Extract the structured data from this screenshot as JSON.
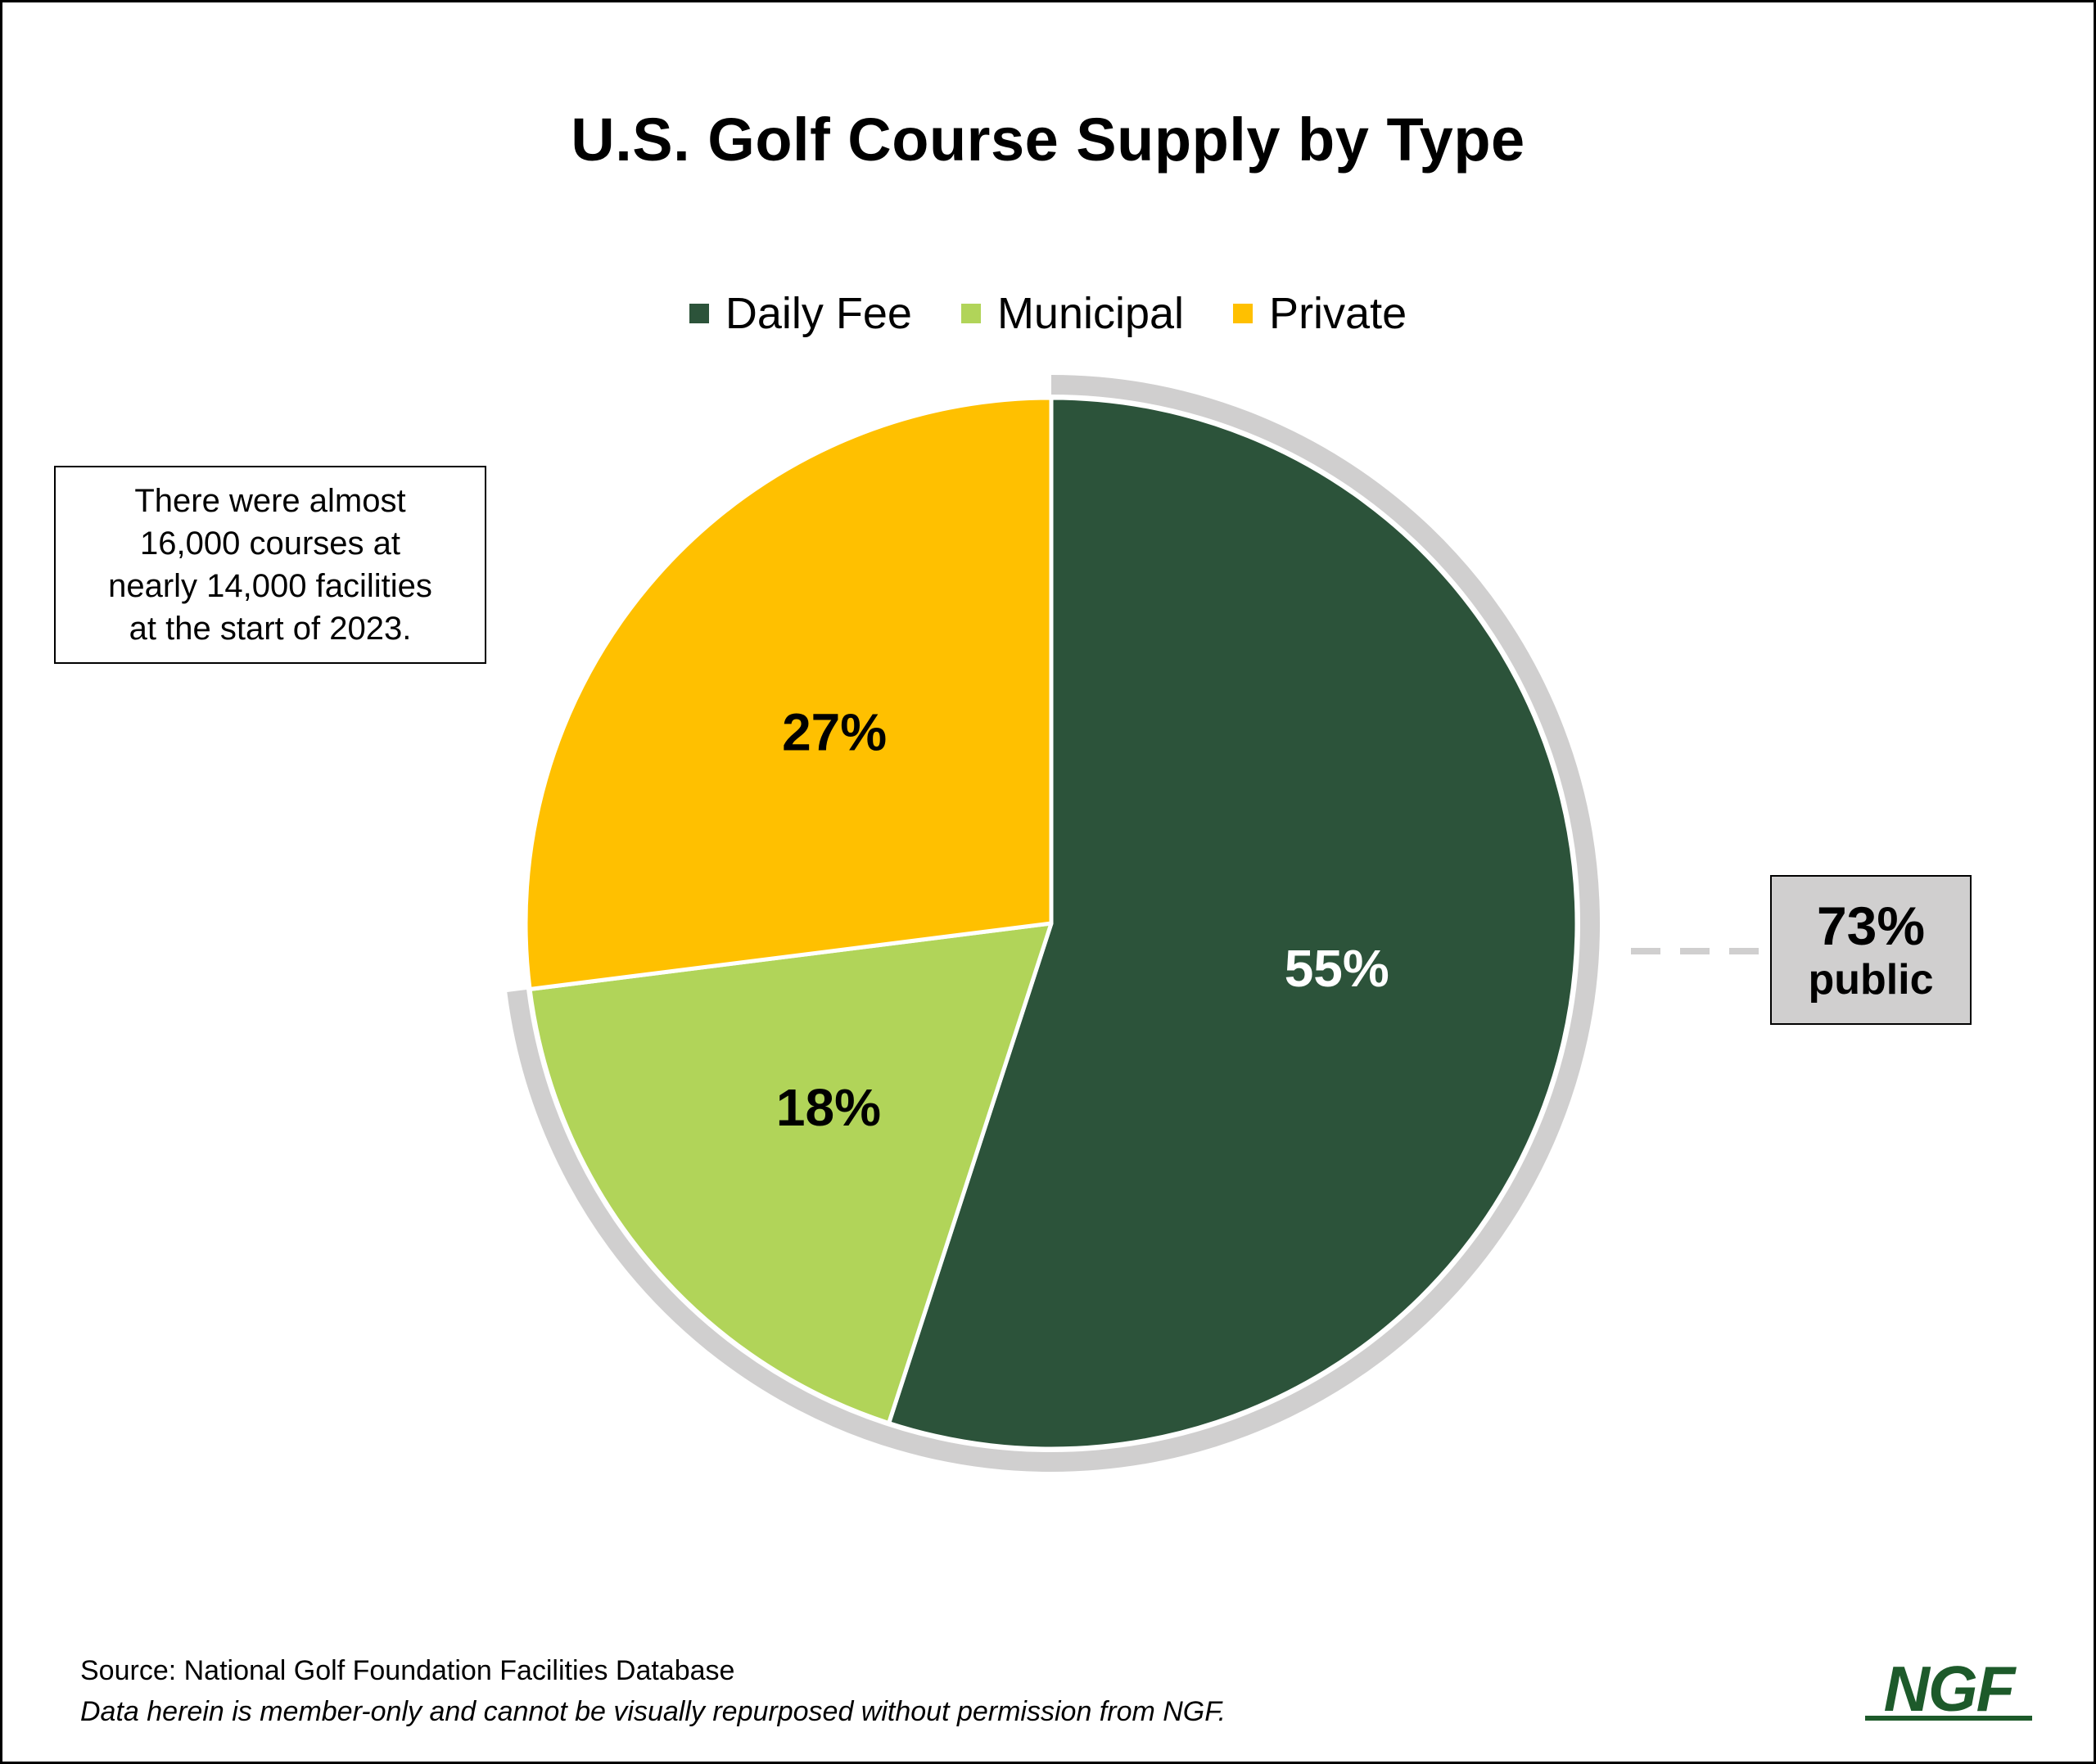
{
  "chart_data": {
    "type": "pie",
    "title": "U.S. Golf Course Supply by Type",
    "slices": [
      {
        "label": "Daily Fee",
        "value": 55,
        "data_label": "55%",
        "color": "#2c533a"
      },
      {
        "label": "Municipal",
        "value": 18,
        "data_label": "18%",
        "color": "#b1d459"
      },
      {
        "label": "Private",
        "value": 27,
        "data_label": "27%",
        "color": "#ffc000"
      }
    ],
    "legend": {
      "placement": "top-center",
      "items": [
        {
          "label": "Daily Fee",
          "color": "#2c533a"
        },
        {
          "label": "Municipal",
          "color": "#b1d459"
        },
        {
          "label": "Private",
          "color": "#ffc000"
        }
      ]
    },
    "group_bracket": {
      "covers": [
        "Daily Fee",
        "Municipal"
      ],
      "value": 73,
      "color": "#d0cfcf"
    },
    "annotations": {
      "note_lines": [
        "There were almost",
        "16,000 courses at",
        "nearly 14,000 facilities",
        "at the start of 2023."
      ],
      "public_pct": "73%",
      "public_label": "public"
    }
  },
  "footer": {
    "source": "Source: National Golf Foundation Facilities Database",
    "disclaimer": "Data herein is member-only and cannot be visually repurposed without permission from NGF."
  },
  "logo": {
    "text": "NGF",
    "color": "#1d5a2a"
  }
}
